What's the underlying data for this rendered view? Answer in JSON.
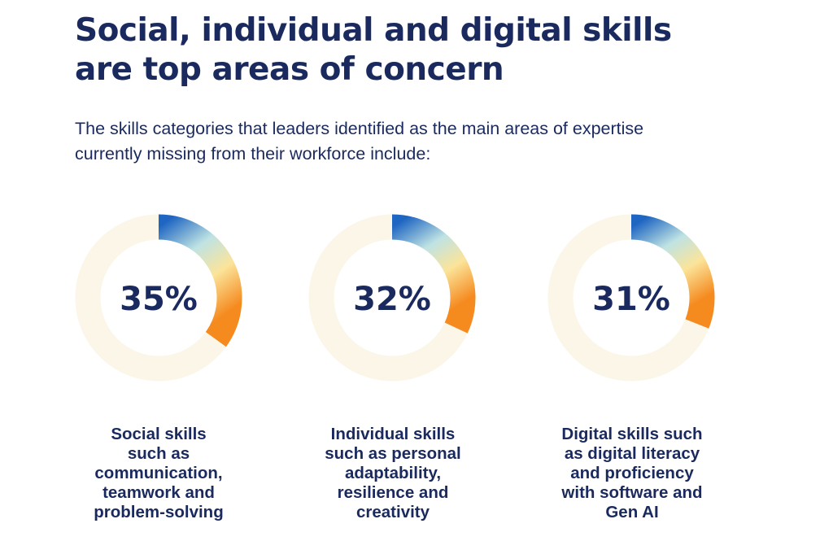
{
  "title": {
    "line1": "Social, individual and digital skills",
    "line2": "are top areas of concern"
  },
  "subtitle": {
    "line1": "The skills categories that leaders identified as the main areas of expertise",
    "line2": "currently missing from their workforce include:"
  },
  "colors": {
    "text": "#1a2a5e",
    "track": "#fbf6e8",
    "gradient_start": "#1f66c2",
    "gradient_mid": "#bfe3e3",
    "gradient_mid2": "#fbe49a",
    "gradient_end": "#f58a1f"
  },
  "chart_data": {
    "type": "donut",
    "values": [
      35,
      32,
      31
    ],
    "value_labels": [
      "35%",
      "32%",
      "31%"
    ],
    "captions": [
      [
        "Social skills",
        "such as",
        "communication,",
        "teamwork and",
        "problem-solving"
      ],
      [
        "Individual skills",
        "such as personal",
        "adaptability,",
        "resilience and",
        "creativity"
      ],
      [
        "Digital skills such",
        "as digital literacy",
        "and proficiency",
        "with software and",
        "Gen AI"
      ]
    ],
    "max": 100
  }
}
